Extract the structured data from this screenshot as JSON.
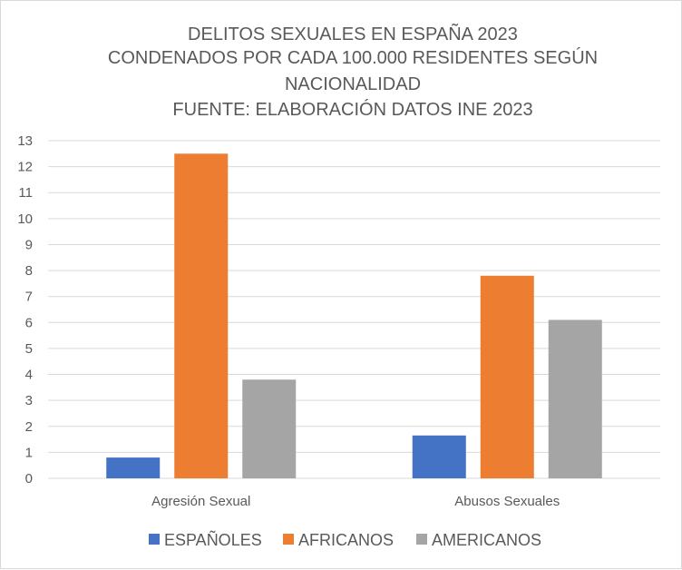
{
  "chart_data": {
    "type": "bar",
    "title_lines": [
      "DELITOS SEXUALES EN ESPAÑA 2023",
      "CONDENADOS POR CADA 100.000 RESIDENTES SEGÚN",
      "NACIONALIDAD",
      "FUENTE: ELABORACIÓN DATOS INE 2023"
    ],
    "categories": [
      "Agresión Sexual",
      "Abusos Sexuales"
    ],
    "series": [
      {
        "name": "ESPAÑOLES",
        "color": "#4472c4",
        "values": [
          0.8,
          1.65
        ]
      },
      {
        "name": "AFRICANOS",
        "color": "#ed7d31",
        "values": [
          12.5,
          7.8
        ]
      },
      {
        "name": "AMERICANOS",
        "color": "#a5a5a5",
        "values": [
          3.8,
          6.1
        ]
      }
    ],
    "ylim": [
      0,
      13
    ],
    "yticks": [
      0,
      1,
      2,
      3,
      4,
      5,
      6,
      7,
      8,
      9,
      10,
      11,
      12,
      13
    ],
    "grid": true,
    "legend_position": "bottom"
  }
}
